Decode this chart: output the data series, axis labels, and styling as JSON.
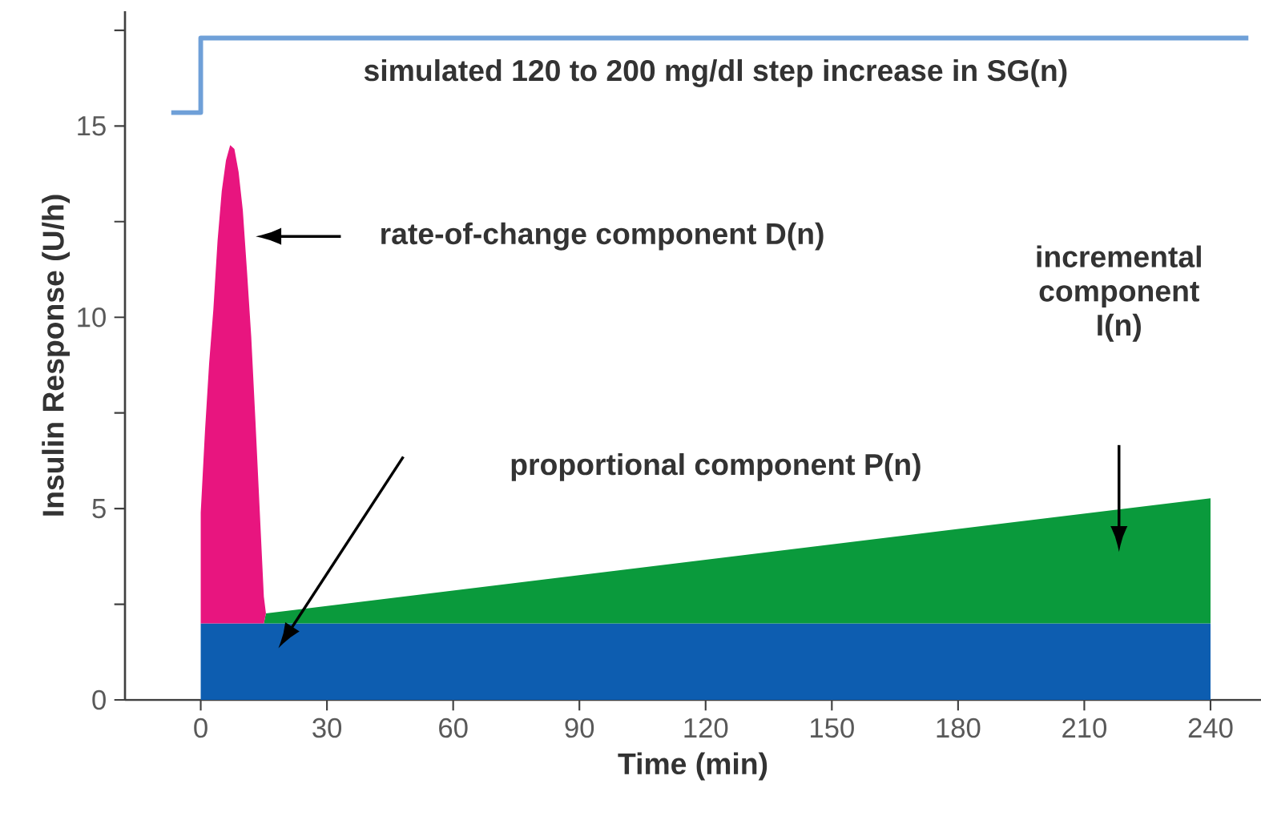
{
  "chart_data": {
    "type": "area",
    "stacked": true,
    "xlabel": "Time (min)",
    "ylabel": "Insulin Response (U/h)",
    "xlim": [
      -18,
      252
    ],
    "ylim": [
      0,
      18
    ],
    "xticks": [
      0,
      30,
      60,
      90,
      120,
      150,
      180,
      210,
      240
    ],
    "yticks": [
      0,
      {
        "value": 2.5,
        "label": null
      },
      5,
      {
        "value": 7.5,
        "label": null
      },
      10,
      {
        "value": 12.5,
        "label": null
      },
      15,
      {
        "value": 17.5,
        "label": null
      }
    ],
    "grid": false,
    "marker": "none",
    "series": [
      {
        "color": "#0d5db0",
        "x": [
          0,
          1,
          2,
          3,
          4,
          5,
          6,
          7,
          8,
          9,
          10,
          11,
          12,
          13,
          14,
          15,
          15.5,
          240
        ],
        "values": [
          2,
          2,
          2,
          2,
          2,
          2,
          2,
          2,
          2,
          2,
          2,
          2,
          2,
          2,
          2,
          2,
          2,
          2
        ]
      },
      {
        "color": "#0a9a3c",
        "x": [
          0,
          1,
          2,
          3,
          4,
          5,
          6,
          7,
          8,
          9,
          10,
          11,
          12,
          13,
          14,
          15,
          15.5,
          240
        ],
        "values": [
          0,
          0,
          0,
          0,
          0,
          0,
          0,
          0,
          0,
          0,
          0,
          0,
          0,
          0,
          0,
          0,
          0.26,
          3.27
        ]
      },
      {
        "color": "#e8157f",
        "x": [
          0,
          1,
          2,
          3,
          4,
          5,
          6,
          7,
          8,
          9,
          10,
          11,
          12,
          13,
          14,
          15,
          15.5,
          240
        ],
        "values": [
          2.9,
          5.0,
          6.8,
          8.2,
          10.0,
          11.3,
          12.1,
          12.5,
          12.4,
          11.8,
          10.8,
          9.2,
          7.5,
          5.3,
          3.0,
          0.7,
          0,
          0
        ]
      },
      {
        "type": "step",
        "color": "#6fa0d8",
        "x": [
          -7,
          0,
          249
        ],
        "values": [
          15.35,
          17.3,
          17.3
        ]
      }
    ],
    "annotations": [
      "simulated 120 to 200 mg/dl step increase in SG(n)",
      "rate-of-change component D(n)",
      "proportional component P(n)",
      "incremental component I(n)"
    ]
  }
}
